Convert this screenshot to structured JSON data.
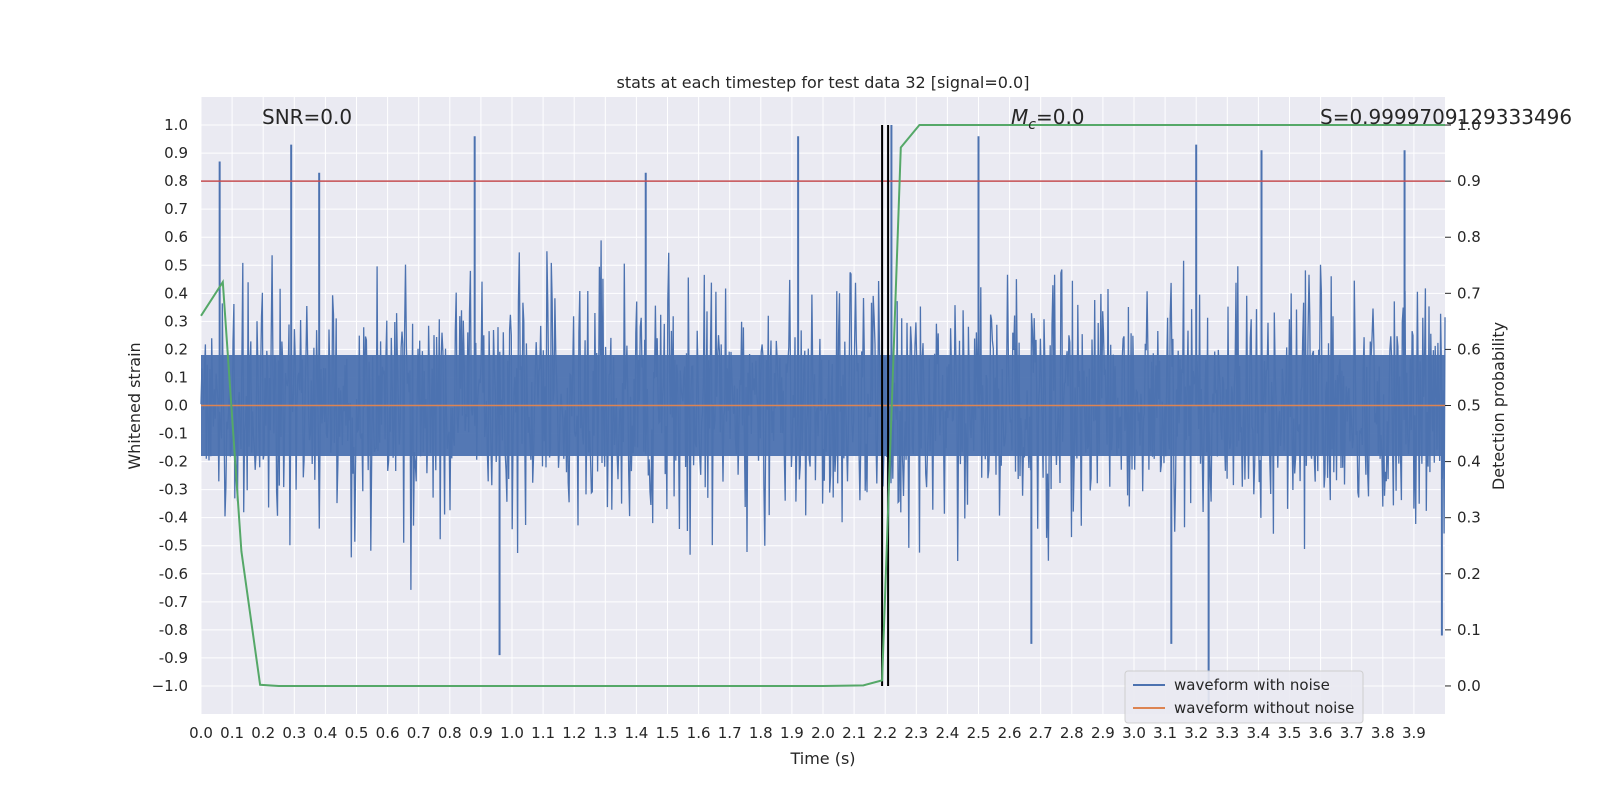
{
  "chart_data": {
    "type": "line",
    "title": "stats at each timestep for test data 32 [signal=0.0]",
    "xlabel": "Time (s)",
    "ylabel_left": "Whitened strain",
    "ylabel_right": "Detection probability",
    "xlim": [
      0.0,
      4.0
    ],
    "ylim_left": [
      -1.1,
      1.1
    ],
    "ylim_right": [
      -0.05,
      1.05
    ],
    "x_ticks": [
      "0.0",
      "0.1",
      "0.2",
      "0.3",
      "0.4",
      "0.5",
      "0.6",
      "0.7",
      "0.8",
      "0.9",
      "1.0",
      "1.1",
      "1.2",
      "1.3",
      "1.4",
      "1.5",
      "1.6",
      "1.7",
      "1.8",
      "1.9",
      "2.0",
      "2.1",
      "2.2",
      "2.3",
      "2.4",
      "2.5",
      "2.6",
      "2.7",
      "2.8",
      "2.9",
      "3.0",
      "3.1",
      "3.2",
      "3.3",
      "3.4",
      "3.5",
      "3.6",
      "3.7",
      "3.8",
      "3.9"
    ],
    "y_ticks_left": [
      "1.0",
      "0.9",
      "0.8",
      "0.7",
      "0.6",
      "0.5",
      "0.4",
      "0.3",
      "0.2",
      "0.1",
      "0.0",
      "-0.1",
      "-0.2",
      "-0.3",
      "-0.4",
      "-0.5",
      "-0.6",
      "-0.7",
      "-0.8",
      "-0.9",
      "−1.0"
    ],
    "y_ticks_right": [
      "1.0",
      "0.9",
      "0.8",
      "0.7",
      "0.6",
      "0.5",
      "0.4",
      "0.3",
      "0.2",
      "0.1",
      "0.0"
    ],
    "annotations": {
      "snr": "SNR=0.0",
      "mc_symbol": "M",
      "mc_sub": "c",
      "mc_value": "=0.0",
      "s": "S=0.9999709129333496"
    },
    "threshold_line": {
      "y": 0.8,
      "color": "#c44e52"
    },
    "vertical_line": {
      "x": 2.19,
      "color": "#000000"
    },
    "noise_envelope": {
      "typical_peak": 0.45,
      "notable_peaks": [
        {
          "x": 0.06,
          "y": 0.87
        },
        {
          "x": 0.29,
          "y": 0.93
        },
        {
          "x": 0.38,
          "y": 0.83
        },
        {
          "x": 0.88,
          "y": 0.96
        },
        {
          "x": 1.43,
          "y": 0.83
        },
        {
          "x": 1.92,
          "y": 0.96
        },
        {
          "x": 2.22,
          "y": 1.0
        },
        {
          "x": 2.5,
          "y": 0.96
        },
        {
          "x": 3.2,
          "y": 0.93
        },
        {
          "x": 3.41,
          "y": 0.91
        },
        {
          "x": 3.87,
          "y": 0.91
        }
      ],
      "notable_troughs": [
        {
          "x": 0.96,
          "y": -0.89
        },
        {
          "x": 2.67,
          "y": -0.85
        },
        {
          "x": 3.12,
          "y": -0.85
        },
        {
          "x": 3.24,
          "y": -1.08
        },
        {
          "x": 3.99,
          "y": -0.82
        }
      ]
    },
    "series": [
      {
        "name": "waveform with noise",
        "color": "#4c72b0"
      },
      {
        "name": "waveform without noise",
        "color": "#dd8452",
        "x": [
          0.0,
          4.0
        ],
        "y": [
          0.0,
          0.0
        ]
      },
      {
        "color": "#55a868",
        "axis": "right",
        "x": [
          0.0,
          0.07,
          0.13,
          0.19,
          0.25,
          0.5,
          1.0,
          1.5,
          2.0,
          2.13,
          2.19,
          2.25,
          2.31,
          3.0,
          3.5,
          4.0
        ],
        "y": [
          0.66,
          0.72,
          0.24,
          0.002,
          0.0,
          0.0,
          0.0,
          0.0,
          0.0,
          0.001,
          0.01,
          0.96,
          1.0,
          1.0,
          1.0,
          1.0
        ]
      }
    ],
    "legend": {
      "location": "lower right"
    },
    "grid": true
  }
}
